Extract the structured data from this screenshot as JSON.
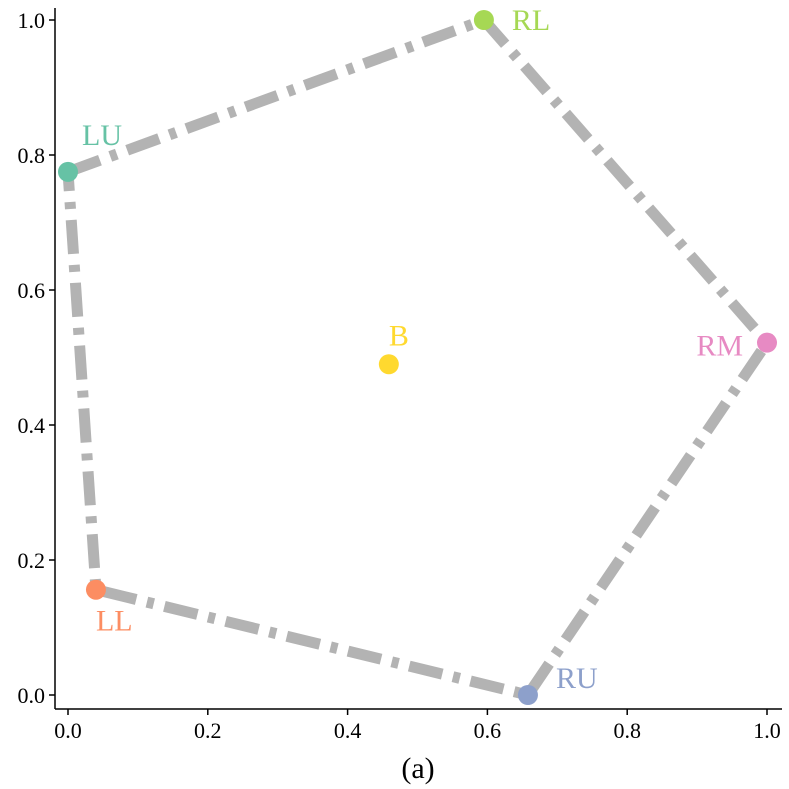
{
  "chart_data": {
    "type": "scatter",
    "caption": "(a)",
    "xlim": [
      -0.02,
      1.02
    ],
    "ylim": [
      -0.02,
      1.02
    ],
    "x_ticks": [
      "0.0",
      "0.2",
      "0.4",
      "0.6",
      "0.8",
      "1.0"
    ],
    "y_ticks": [
      "0.0",
      "0.2",
      "0.4",
      "0.6",
      "0.8",
      "1.0"
    ],
    "grid": false,
    "points": [
      {
        "label": "LU",
        "x": 0.0,
        "y": 0.775,
        "color": "#66c2a5"
      },
      {
        "label": "RL",
        "x": 0.595,
        "y": 1.0,
        "color": "#a6d854"
      },
      {
        "label": "RM",
        "x": 1.0,
        "y": 0.522,
        "color": "#e78ac3"
      },
      {
        "label": "RU",
        "x": 0.658,
        "y": 0.0,
        "color": "#8da0cb"
      },
      {
        "label": "LL",
        "x": 0.04,
        "y": 0.156,
        "color": "#fc8d62"
      },
      {
        "label": "B",
        "x": 0.459,
        "y": 0.49,
        "color": "#ffd92f"
      }
    ],
    "polygon_order": [
      "LU",
      "RL",
      "RM",
      "RU",
      "LL"
    ],
    "polygon_color": "#b3b3b3"
  }
}
